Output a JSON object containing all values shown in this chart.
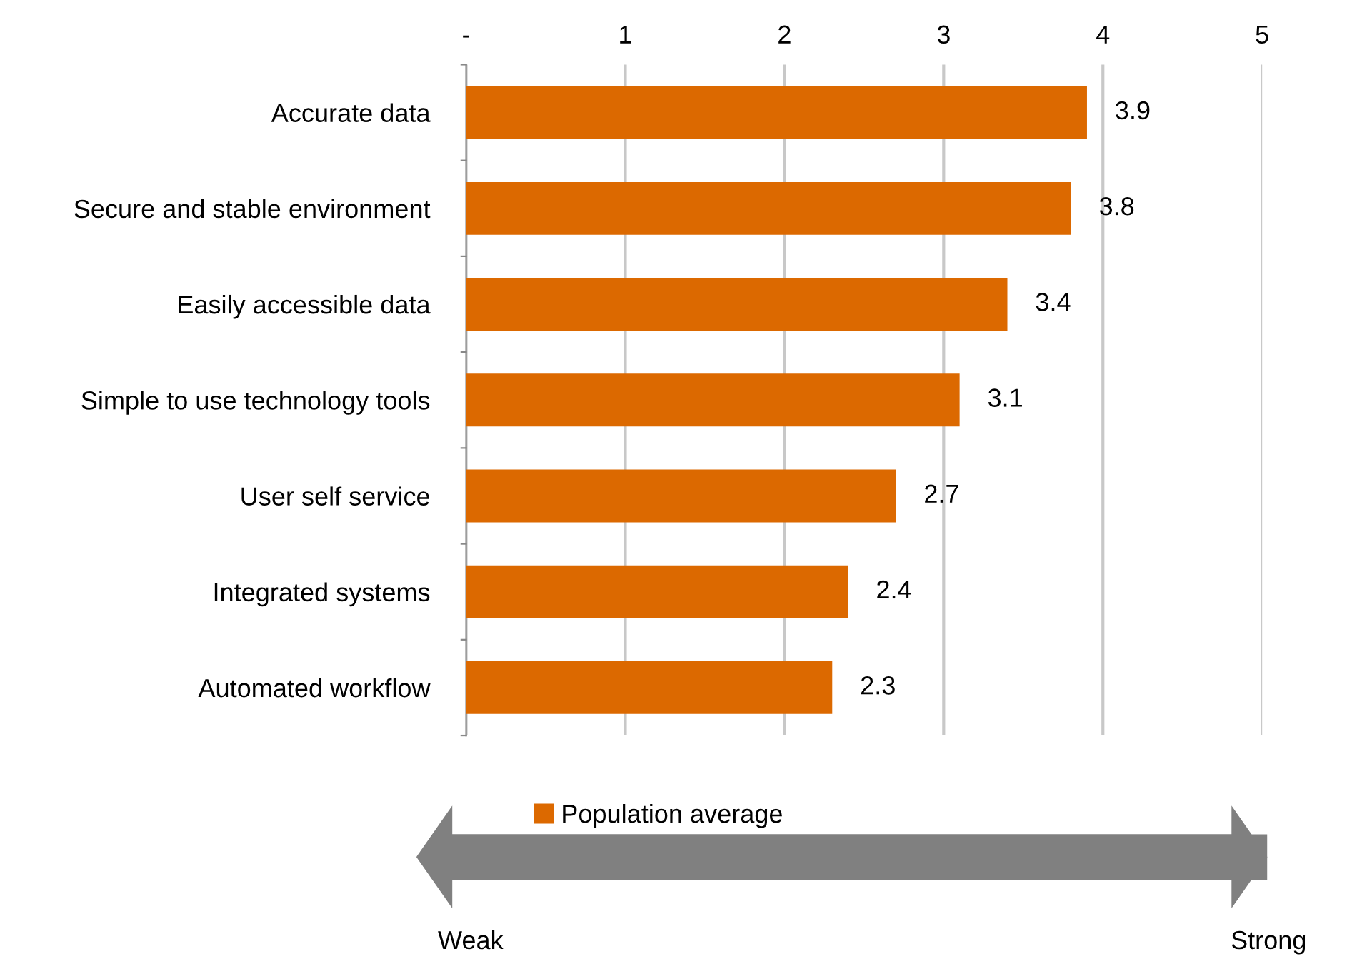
{
  "chart_data": {
    "type": "bar",
    "orientation": "horizontal",
    "categories": [
      "Accurate data",
      "Secure and stable environment",
      "Easily accessible data",
      "Simple to use technology tools",
      "User self service",
      "Integrated systems",
      "Automated workflow"
    ],
    "series": [
      {
        "name": "Population average",
        "color": "#dc6900",
        "values": [
          3.9,
          3.8,
          3.4,
          3.1,
          2.7,
          2.4,
          2.3
        ]
      }
    ],
    "xlim": [
      0,
      5
    ],
    "xticks": [
      {
        "value": 0,
        "label": "-"
      },
      1,
      2,
      3,
      4,
      5
    ],
    "grid": "x",
    "legend": "bottom",
    "data_labels": true,
    "annotations": [
      "Weak",
      "Strong"
    ]
  }
}
